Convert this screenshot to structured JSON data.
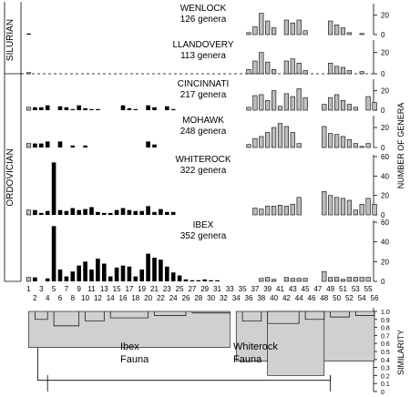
{
  "chart_data": {
    "type": "bar",
    "y_axis_label": "NUMBER OF GENERA",
    "x_categories": [
      1,
      2,
      3,
      4,
      5,
      6,
      7,
      8,
      9,
      10,
      11,
      12,
      13,
      14,
      15,
      16,
      17,
      18,
      19,
      20,
      21,
      22,
      23,
      24,
      25,
      26,
      27,
      28,
      29,
      30,
      31,
      32,
      33,
      34,
      35,
      36,
      37,
      38,
      39,
      40,
      41,
      42,
      43,
      44,
      45,
      46,
      47,
      48,
      49,
      50,
      51,
      52,
      53,
      54,
      55,
      56
    ],
    "periods": [
      {
        "name": "SILURIAN",
        "panels": [
          "WENLOCK",
          "LLANDOVERY"
        ]
      },
      {
        "name": "ORDOVICIAN",
        "panels": [
          "CINCINNATI",
          "MOHAWK",
          "WHITEROCK",
          "IBEX"
        ]
      }
    ],
    "panels": [
      {
        "name": "WENLOCK",
        "count_label": "126 genera",
        "ymax": 30,
        "ticks": [
          0,
          20
        ],
        "open_bar_clusters": [
          35,
          36,
          37,
          38,
          39,
          40,
          41,
          42,
          43,
          44,
          45,
          46,
          47,
          48,
          49,
          50,
          51,
          52,
          53,
          54,
          55,
          56
        ],
        "values": [
          1,
          0,
          0,
          0,
          0,
          0,
          0,
          0,
          0,
          0,
          0,
          0,
          0,
          0,
          0,
          0,
          0,
          0,
          0,
          0,
          0,
          0,
          0,
          0,
          0,
          0,
          0,
          0,
          0,
          0,
          0,
          0,
          0,
          0,
          0,
          2,
          8,
          22,
          14,
          7,
          0,
          15,
          12,
          15,
          4,
          0,
          0,
          0,
          14,
          10,
          7,
          2,
          0,
          1,
          0,
          0
        ]
      },
      {
        "name": "LLANDOVERY",
        "count_label": "113 genera",
        "ymax": 30,
        "ticks": [
          0,
          20
        ],
        "open_bar_clusters": [
          1,
          35,
          36,
          37,
          38,
          39,
          40,
          41,
          42,
          43,
          44,
          45,
          46,
          47,
          48,
          49,
          50,
          51,
          52,
          53,
          54,
          55,
          56
        ],
        "values": [
          1,
          0,
          0,
          0,
          0,
          0,
          0,
          0,
          0,
          0,
          0,
          0,
          0,
          0,
          0,
          0,
          0,
          0,
          0,
          0,
          0,
          0,
          0,
          0,
          0,
          0,
          0,
          0,
          0,
          0,
          0,
          0,
          0,
          0,
          0,
          4,
          12,
          20,
          11,
          4,
          0,
          12,
          14,
          10,
          3,
          0,
          0,
          0,
          10,
          7,
          6,
          3,
          0,
          2,
          0,
          0
        ]
      },
      {
        "name": "CINCINNATI",
        "count_label": "217 genera",
        "ymax": 30,
        "ticks": [
          0,
          20
        ],
        "open_bar_clusters": [
          1,
          35,
          36,
          37,
          38,
          39,
          40,
          41,
          42,
          43,
          44,
          45,
          46,
          47,
          48,
          49,
          50,
          51,
          52,
          53,
          54,
          55,
          56
        ],
        "values": [
          3,
          3,
          3,
          5,
          0,
          4,
          3,
          1,
          5,
          2,
          1,
          1,
          0,
          0,
          0,
          5,
          2,
          1,
          0,
          5,
          3,
          0,
          4,
          1,
          0,
          0,
          0,
          0,
          0,
          0,
          0,
          0,
          0,
          0,
          0,
          3,
          15,
          16,
          10,
          20,
          4,
          17,
          14,
          22,
          13,
          0,
          0,
          6,
          13,
          16,
          10,
          6,
          3,
          0,
          14,
          8
        ]
      },
      {
        "name": "MOHAWK",
        "count_label": "248 genera",
        "ymax": 30,
        "ticks": [
          0,
          20
        ],
        "open_bar_clusters": [
          1,
          35,
          36,
          37,
          38,
          39,
          40,
          41,
          42,
          43,
          44,
          45,
          46,
          47,
          48,
          49,
          50,
          51,
          52,
          53,
          54,
          55,
          56
        ],
        "values": [
          4,
          4,
          4,
          6,
          0,
          6,
          0,
          2,
          0,
          2,
          0,
          0,
          0,
          0,
          0,
          0,
          0,
          0,
          0,
          6,
          3,
          0,
          0,
          0,
          0,
          0,
          0,
          0,
          0,
          0,
          0,
          0,
          0,
          0,
          0,
          3,
          9,
          11,
          15,
          20,
          24,
          21,
          15,
          4,
          0,
          0,
          0,
          21,
          14,
          13,
          11,
          8,
          4,
          1,
          4,
          0
        ]
      },
      {
        "name": "WHITEROCK",
        "count_label": "322 genera",
        "ymax": 60,
        "ticks": [
          0,
          20,
          40,
          60
        ],
        "open_bar_clusters": [
          1,
          35,
          36,
          37,
          38,
          39,
          40,
          41,
          42,
          43,
          44,
          45,
          46,
          47,
          48,
          49,
          50,
          51,
          52,
          53,
          54,
          55,
          56
        ],
        "values": [
          5,
          5,
          2,
          4,
          54,
          5,
          4,
          7,
          5,
          6,
          8,
          3,
          2,
          2,
          5,
          7,
          5,
          4,
          4,
          9,
          3,
          6,
          3,
          3,
          0,
          0,
          0,
          0,
          0,
          0,
          0,
          0,
          0,
          0,
          0,
          0,
          7,
          6,
          9,
          9,
          10,
          9,
          11,
          18,
          0,
          0,
          0,
          24,
          20,
          18,
          17,
          15,
          5,
          11,
          17,
          11
        ]
      },
      {
        "name": "IBEX",
        "count_label": "352 genera",
        "ymax": 60,
        "ticks": [
          0,
          20,
          40,
          60
        ],
        "open_bar_clusters": [
          1,
          35,
          36,
          37,
          38,
          39,
          40,
          41,
          42,
          43,
          44,
          45,
          46,
          47,
          48,
          49,
          50,
          51,
          52,
          53,
          54,
          55,
          56
        ],
        "values": [
          4,
          4,
          0,
          3,
          56,
          12,
          5,
          10,
          16,
          20,
          12,
          23,
          18,
          5,
          14,
          16,
          15,
          5,
          12,
          28,
          24,
          22,
          15,
          9,
          6,
          2,
          1,
          1,
          2,
          1,
          1,
          0,
          0,
          0,
          0,
          0,
          0,
          3,
          4,
          2,
          0,
          4,
          3,
          3,
          3,
          0,
          0,
          10,
          4,
          4,
          2,
          4,
          4,
          4,
          4,
          0
        ]
      }
    ],
    "dendrogram": {
      "axis_label": "SIMILARITY",
      "ticks": [
        "1.0",
        "0.9",
        "0.8",
        "0.7",
        "0.6",
        "0.5",
        "0.4",
        "0.3",
        "0.2",
        "0.1",
        "0"
      ],
      "groups": [
        "Ibex\nFauna",
        "Whiterock\nFauna"
      ],
      "clusters": [
        {
          "left": 0,
          "right": 1,
          "level": 0.14
        },
        {
          "left": 2,
          "right": 3,
          "level": 0.98
        },
        {
          "left": 4,
          "right": 5,
          "level": 0.89
        },
        {
          "left": 6,
          "right": 7,
          "level": 0.95
        },
        {
          "left": 8,
          "right": 9,
          "level": 0.85
        },
        {
          "left": 10,
          "right": 11,
          "level": 0.92
        },
        {
          "left": 12,
          "right": 13,
          "level": 0.9
        },
        {
          "left": 14,
          "right": 15,
          "level": 0.87
        },
        {
          "left": 16,
          "right": 17,
          "level": 0.78
        },
        {
          "left": 18,
          "right": 19,
          "level": 0.95
        },
        {
          "left": 20,
          "right": 21,
          "level": 0.9
        },
        {
          "left": 22,
          "right": 23,
          "level": 0.97
        },
        {
          "left": 24,
          "right": 25,
          "level": 0.86
        },
        {
          "left": 26,
          "right": 27,
          "level": 0.92
        },
        {
          "left": 28,
          "right": 29,
          "level": 0.95
        },
        {
          "left": 30,
          "right": 31,
          "level": 0.98
        },
        {
          "left": 32,
          "right": 33,
          "level": 0.95
        },
        {
          "left": 34,
          "right": 35,
          "level": 0.6
        },
        {
          "left": 36,
          "right": 37,
          "level": 0.97
        },
        {
          "left": 38,
          "right": 39,
          "level": 0.93
        },
        {
          "left": 40,
          "right": 41,
          "level": 0.9
        },
        {
          "left": 42,
          "right": 43,
          "level": 0.85
        },
        {
          "left": 44,
          "right": 45,
          "level": 0.88
        },
        {
          "left": 46,
          "right": 47,
          "level": 0.8
        },
        {
          "left": 48,
          "right": 49,
          "level": 0.9
        },
        {
          "left": 50,
          "right": 51,
          "level": 0.95
        },
        {
          "left": 52,
          "right": 53,
          "level": 0.82
        },
        {
          "left": 54,
          "right": 55,
          "level": 0.7
        },
        {
          "left": 56,
          "right": 57,
          "level": 0.55
        },
        {
          "left": 58,
          "right": 59,
          "level": 0.17
        }
      ]
    }
  }
}
